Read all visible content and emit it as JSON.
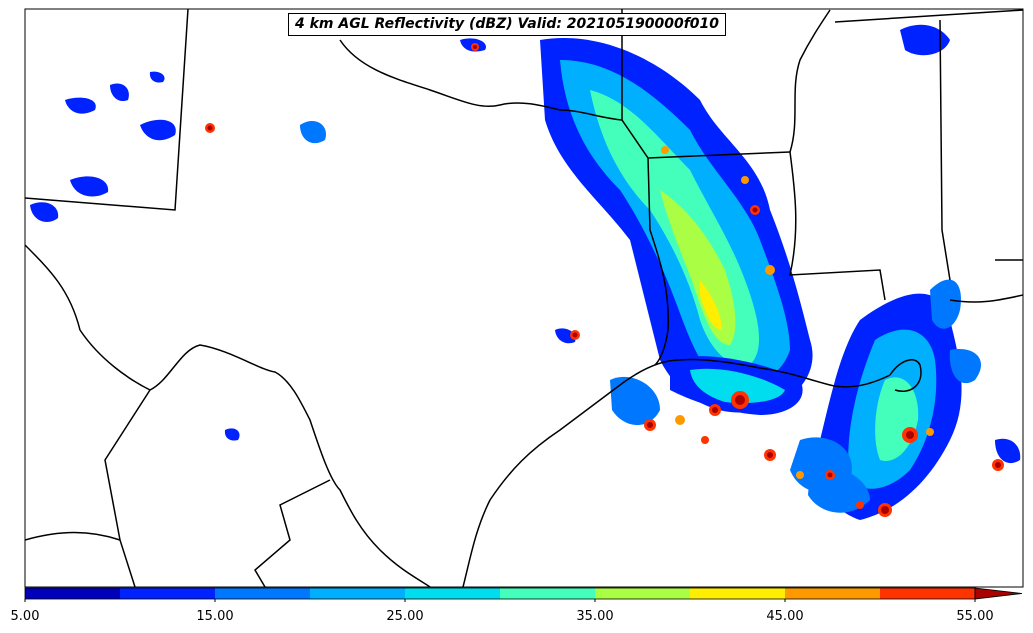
{
  "title": "4 km AGL Reflectivity (dBZ) Valid: 202105190000f010",
  "colorbar": {
    "ticks": [
      "5.00",
      "15.00",
      "25.00",
      "35.00",
      "45.00",
      "55.00"
    ],
    "levels": [
      5,
      10,
      15,
      20,
      25,
      30,
      35,
      40,
      45,
      50,
      55
    ],
    "colors": [
      "#0000bb",
      "#0022ff",
      "#0077ff",
      "#00b0ff",
      "#00ddee",
      "#44ffbb",
      "#aaff44",
      "#ffee00",
      "#ff9900",
      "#ff3300",
      "#aa0000"
    ],
    "extend": "max"
  }
}
